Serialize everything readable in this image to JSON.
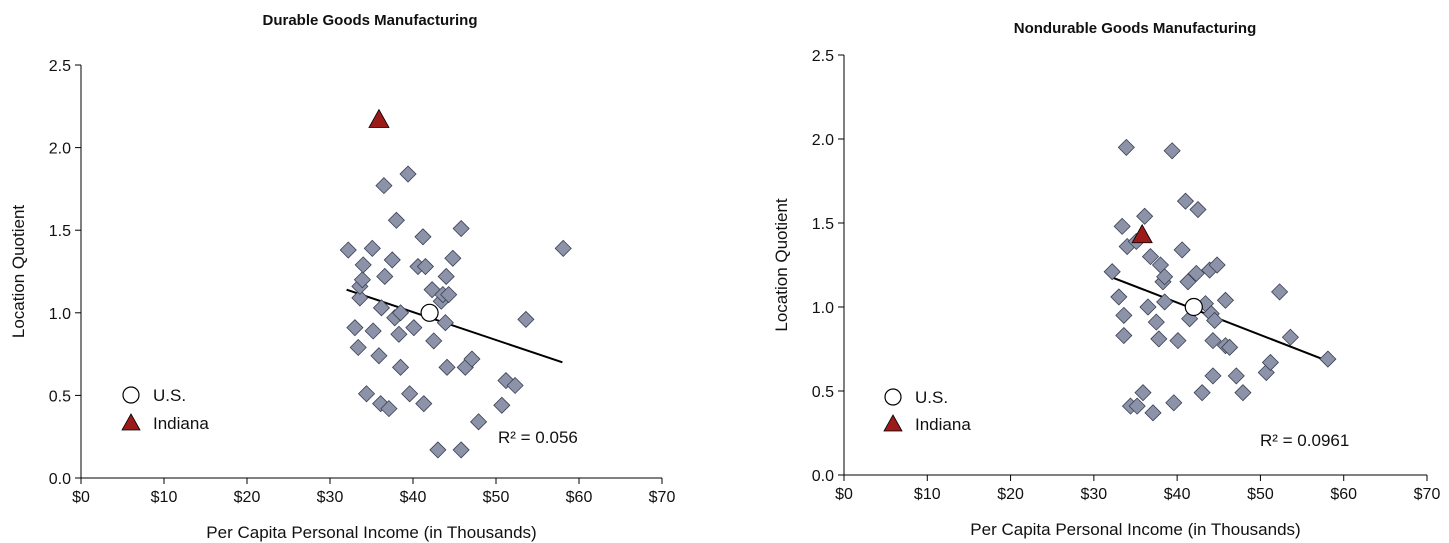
{
  "chart_data": [
    {
      "type": "scatter",
      "title": "Durable Goods Manufacturing",
      "xlabel": "Per Capita Personal Income (in Thousands)",
      "ylabel": "Location Quotient",
      "xlim": [
        0,
        70
      ],
      "ylim": [
        0,
        2.5
      ],
      "xticks": [
        0,
        10,
        20,
        30,
        40,
        50,
        60,
        70
      ],
      "xtick_labels": [
        "$0",
        "$10",
        "$20",
        "$30",
        "$40",
        "$50",
        "$60",
        "$70"
      ],
      "yticks": [
        0,
        0.5,
        1,
        1.5,
        2,
        2.5
      ],
      "ytick_labels": [
        "0.0",
        "0.5",
        "1.0",
        "1.5",
        "2.0",
        "2.5"
      ],
      "grid": false,
      "legend_position": "bottom-left",
      "states": [
        [
          32.2,
          1.38
        ],
        [
          33.0,
          0.91
        ],
        [
          33.4,
          0.79
        ],
        [
          33.6,
          1.09
        ],
        [
          33.6,
          1.16
        ],
        [
          33.9,
          1.2
        ],
        [
          34.0,
          1.29
        ],
        [
          34.4,
          0.51
        ],
        [
          35.1,
          1.39
        ],
        [
          35.2,
          0.89
        ],
        [
          35.9,
          0.74
        ],
        [
          36.1,
          0.45
        ],
        [
          36.2,
          1.03
        ],
        [
          36.5,
          1.77
        ],
        [
          36.6,
          1.22
        ],
        [
          37.1,
          0.42
        ],
        [
          37.5,
          1.32
        ],
        [
          37.8,
          0.97
        ],
        [
          38.0,
          1.56
        ],
        [
          38.3,
          0.87
        ],
        [
          38.5,
          0.67
        ],
        [
          38.5,
          1.0
        ],
        [
          39.4,
          1.84
        ],
        [
          39.6,
          0.51
        ],
        [
          40.1,
          0.91
        ],
        [
          40.6,
          1.28
        ],
        [
          41.2,
          1.46
        ],
        [
          41.3,
          0.45
        ],
        [
          41.5,
          1.28
        ],
        [
          42.3,
          1.14
        ],
        [
          42.5,
          0.83
        ],
        [
          43.0,
          0.17
        ],
        [
          43.4,
          1.07
        ],
        [
          43.6,
          1.11
        ],
        [
          43.9,
          0.94
        ],
        [
          44.0,
          1.22
        ],
        [
          44.1,
          0.67
        ],
        [
          44.3,
          1.11
        ],
        [
          44.8,
          1.33
        ],
        [
          45.8,
          1.51
        ],
        [
          45.8,
          0.17
        ],
        [
          46.3,
          0.67
        ],
        [
          47.1,
          0.72
        ],
        [
          47.9,
          0.34
        ],
        [
          50.7,
          0.44
        ],
        [
          51.2,
          0.59
        ],
        [
          52.3,
          0.56
        ],
        [
          53.6,
          0.96
        ],
        [
          58.1,
          1.39
        ]
      ],
      "us_point": [
        42.0,
        1.0
      ],
      "indiana_point": [
        35.9,
        2.17
      ],
      "trendline": [
        [
          32.0,
          1.14
        ],
        [
          58.0,
          0.7
        ]
      ],
      "legend": [
        {
          "marker": "circle",
          "label": "U.S."
        },
        {
          "marker": "triangle",
          "label": "Indiana"
        }
      ],
      "r2_text": "R² = 0.056",
      "colors": {
        "states_fill": "#8c93a8",
        "states_stroke": "#3a3f55",
        "indiana": "#9b1b1b",
        "line": "#000000"
      }
    },
    {
      "type": "scatter",
      "title": "Nondurable Goods Manufacturing",
      "xlabel": "Per Capita Personal Income (in Thousands)",
      "ylabel": "Location Quotient",
      "xlim": [
        0,
        70
      ],
      "ylim": [
        0,
        2.5
      ],
      "xticks": [
        0,
        10,
        20,
        30,
        40,
        50,
        60,
        70
      ],
      "xtick_labels": [
        "$0",
        "$10",
        "$20",
        "$30",
        "$40",
        "$50",
        "$60",
        "$70"
      ],
      "yticks": [
        0,
        0.5,
        1,
        1.5,
        2,
        2.5
      ],
      "ytick_labels": [
        "0.0",
        "0.5",
        "1.0",
        "1.5",
        "2.0",
        "2.5"
      ],
      "grid": false,
      "legend_position": "bottom-left",
      "states": [
        [
          32.2,
          1.21
        ],
        [
          33.0,
          1.06
        ],
        [
          33.4,
          1.48
        ],
        [
          33.6,
          0.95
        ],
        [
          33.6,
          0.83
        ],
        [
          33.9,
          1.95
        ],
        [
          34.0,
          1.36
        ],
        [
          34.4,
          0.41
        ],
        [
          35.1,
          1.39
        ],
        [
          35.2,
          0.41
        ],
        [
          35.9,
          0.49
        ],
        [
          36.1,
          1.54
        ],
        [
          36.5,
          1.0
        ],
        [
          36.8,
          1.3
        ],
        [
          37.1,
          0.37
        ],
        [
          37.5,
          0.91
        ],
        [
          37.8,
          0.81
        ],
        [
          38.0,
          1.25
        ],
        [
          38.3,
          1.15
        ],
        [
          38.5,
          1.18
        ],
        [
          38.5,
          1.03
        ],
        [
          39.4,
          1.93
        ],
        [
          39.6,
          0.43
        ],
        [
          40.1,
          0.8
        ],
        [
          40.6,
          1.34
        ],
        [
          41.0,
          1.63
        ],
        [
          41.3,
          1.15
        ],
        [
          41.5,
          0.93
        ],
        [
          42.3,
          1.2
        ],
        [
          42.5,
          1.58
        ],
        [
          43.0,
          0.49
        ],
        [
          43.4,
          1.02
        ],
        [
          43.9,
          1.22
        ],
        [
          44.1,
          0.96
        ],
        [
          44.3,
          0.59
        ],
        [
          44.8,
          1.25
        ],
        [
          44.3,
          0.8
        ],
        [
          45.8,
          1.04
        ],
        [
          45.8,
          0.77
        ],
        [
          46.3,
          0.76
        ],
        [
          47.1,
          0.59
        ],
        [
          47.9,
          0.49
        ],
        [
          50.7,
          0.61
        ],
        [
          51.2,
          0.67
        ],
        [
          52.3,
          1.09
        ],
        [
          53.6,
          0.82
        ],
        [
          58.1,
          0.69
        ],
        [
          44.5,
          0.92
        ]
      ],
      "us_point": [
        42.0,
        1.0
      ],
      "indiana_point": [
        35.8,
        1.43
      ],
      "trendline": [
        [
          32.0,
          1.18
        ],
        [
          58.0,
          0.68
        ]
      ],
      "legend": [
        {
          "marker": "circle",
          "label": "U.S."
        },
        {
          "marker": "triangle",
          "label": "Indiana"
        }
      ],
      "r2_text": "R² = 0.0961",
      "colors": {
        "states_fill": "#8c93a8",
        "states_stroke": "#3a3f55",
        "indiana": "#9b1b1b",
        "line": "#000000"
      }
    }
  ]
}
